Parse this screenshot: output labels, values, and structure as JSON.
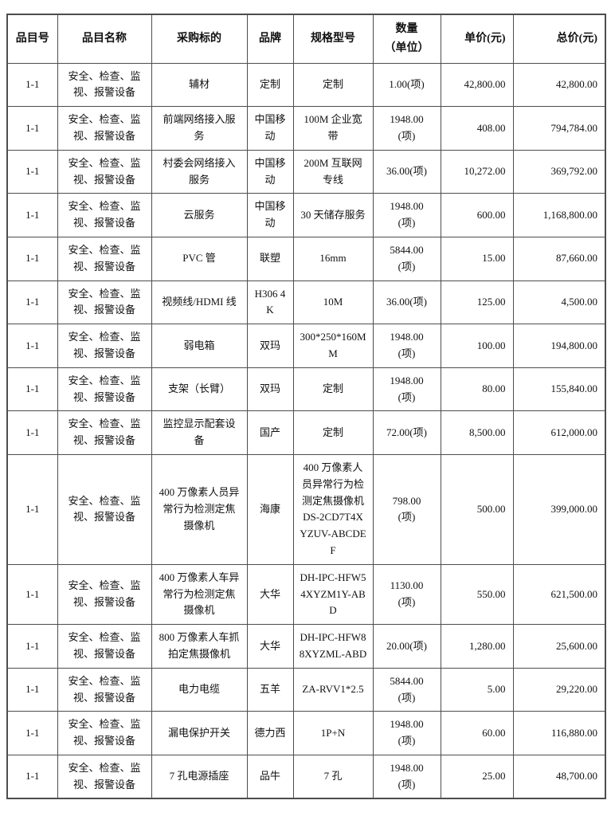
{
  "colors": {
    "background": "#ffffff",
    "border": "#4d4d4d",
    "text": "#111111"
  },
  "table": {
    "columns": [
      {
        "key": "item_no",
        "label": "品目号"
      },
      {
        "key": "item_name",
        "label": "品目名称"
      },
      {
        "key": "target",
        "label": "采购标的"
      },
      {
        "key": "brand",
        "label": "品牌"
      },
      {
        "key": "spec",
        "label": "规格型号"
      },
      {
        "key": "qty",
        "label": "数量\n（单位）"
      },
      {
        "key": "unit_price",
        "label": "单价(元)"
      },
      {
        "key": "total_price",
        "label": "总价(元)"
      }
    ],
    "rows": [
      {
        "item_no": "1-1",
        "item_name": "安全、检查、监视、报警设备",
        "target": "辅材",
        "brand": "定制",
        "spec": "定制",
        "qty": "1.00(项)",
        "unit_price": "42,800.00",
        "total_price": "42,800.00"
      },
      {
        "item_no": "1-1",
        "item_name": "安全、检查、监视、报警设备",
        "target": "前端网络接入服务",
        "brand": "中国移动",
        "spec": "100M 企业宽带",
        "qty": "1948.00\n(项)",
        "unit_price": "408.00",
        "total_price": "794,784.00"
      },
      {
        "item_no": "1-1",
        "item_name": "安全、检查、监视、报警设备",
        "target": "村委会网络接入服务",
        "brand": "中国移动",
        "spec": "200M 互联网专线",
        "qty": "36.00(项)",
        "unit_price": "10,272.00",
        "total_price": "369,792.00"
      },
      {
        "item_no": "1-1",
        "item_name": "安全、检查、监视、报警设备",
        "target": "云服务",
        "brand": "中国移动",
        "spec": "30 天储存服务",
        "qty": "1948.00\n(项)",
        "unit_price": "600.00",
        "total_price": "1,168,800.00"
      },
      {
        "item_no": "1-1",
        "item_name": "安全、检查、监视、报警设备",
        "target": "PVC 管",
        "brand": "联塑",
        "spec": "16mm",
        "qty": "5844.00\n(项)",
        "unit_price": "15.00",
        "total_price": "87,660.00"
      },
      {
        "item_no": "1-1",
        "item_name": "安全、检查、监视、报警设备",
        "target": "视频线/HDMI 线",
        "brand": "H306 4K",
        "spec": "10M",
        "qty": "36.00(项)",
        "unit_price": "125.00",
        "total_price": "4,500.00"
      },
      {
        "item_no": "1-1",
        "item_name": "安全、检查、监视、报警设备",
        "target": "弱电箱",
        "brand": "双玛",
        "spec": "300*250*160MM",
        "qty": "1948.00\n(项)",
        "unit_price": "100.00",
        "total_price": "194,800.00"
      },
      {
        "item_no": "1-1",
        "item_name": "安全、检查、监视、报警设备",
        "target": "支架（长臂）",
        "brand": "双玛",
        "spec": "定制",
        "qty": "1948.00\n(项)",
        "unit_price": "80.00",
        "total_price": "155,840.00"
      },
      {
        "item_no": "1-1",
        "item_name": "安全、检查、监视、报警设备",
        "target": "监控显示配套设备",
        "brand": "国产",
        "spec": "定制",
        "qty": "72.00(项)",
        "unit_price": "8,500.00",
        "total_price": "612,000.00"
      },
      {
        "item_no": "1-1",
        "item_name": "安全、检查、监视、报警设备",
        "target": "400 万像素人员异常行为检测定焦摄像机",
        "brand": "海康",
        "spec": "400 万像素人员异常行为检测定焦摄像机 DS-2CD7T4XYZUV-ABCDEF",
        "qty": "798.00\n(项)",
        "unit_price": "500.00",
        "total_price": "399,000.00"
      },
      {
        "item_no": "1-1",
        "item_name": "安全、检查、监视、报警设备",
        "target": "400 万像素人车异常行为检测定焦摄像机",
        "brand": "大华",
        "spec": "DH-IPC-HFW54XYZM1Y-ABD",
        "qty": "1130.00\n(项)",
        "unit_price": "550.00",
        "total_price": "621,500.00"
      },
      {
        "item_no": "1-1",
        "item_name": "安全、检查、监视、报警设备",
        "target": "800 万像素人车抓拍定焦摄像机",
        "brand": "大华",
        "spec": "DH-IPC-HFW88XYZML-ABD",
        "qty": "20.00(项)",
        "unit_price": "1,280.00",
        "total_price": "25,600.00"
      },
      {
        "item_no": "1-1",
        "item_name": "安全、检查、监视、报警设备",
        "target": "电力电缆",
        "brand": "五羊",
        "spec": "ZA-RVV1*2.5",
        "qty": "5844.00\n(项)",
        "unit_price": "5.00",
        "total_price": "29,220.00"
      },
      {
        "item_no": "1-1",
        "item_name": "安全、检查、监视、报警设备",
        "target": "漏电保护开关",
        "brand": "德力西",
        "spec": "1P+N",
        "qty": "1948.00\n(项)",
        "unit_price": "60.00",
        "total_price": "116,880.00"
      },
      {
        "item_no": "1-1",
        "item_name": "安全、检查、监视、报警设备",
        "target": "7 孔电源插座",
        "brand": "品牛",
        "spec": "7 孔",
        "qty": "1948.00\n(项)",
        "unit_price": "25.00",
        "total_price": "48,700.00"
      }
    ]
  }
}
